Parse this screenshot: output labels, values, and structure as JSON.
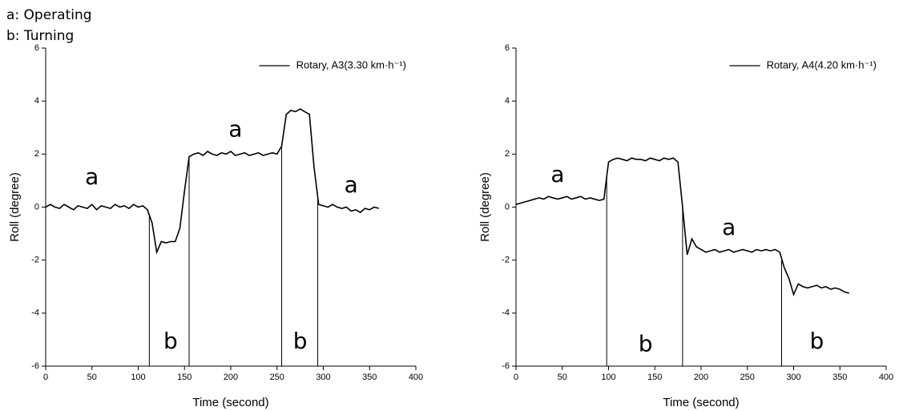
{
  "notes": [
    "a: Operating",
    "b: Turning"
  ],
  "chart_data": [
    {
      "type": "line",
      "xlabel": "Time (second)",
      "ylabel": "Roll (degree)",
      "xlim": [
        0,
        400
      ],
      "xticks": [
        0,
        50,
        100,
        150,
        200,
        250,
        300,
        350,
        400
      ],
      "ylim": [
        -6,
        6
      ],
      "yticks": [
        -6,
        -4,
        -2,
        0,
        2,
        4,
        6
      ],
      "legend": "top right",
      "x": [
        0,
        5,
        10,
        15,
        20,
        25,
        30,
        35,
        40,
        45,
        50,
        55,
        60,
        65,
        70,
        75,
        80,
        85,
        90,
        95,
        100,
        105,
        110,
        115,
        120,
        125,
        130,
        135,
        140,
        145,
        150,
        155,
        160,
        165,
        170,
        175,
        180,
        185,
        190,
        195,
        200,
        205,
        210,
        215,
        220,
        225,
        230,
        235,
        240,
        245,
        250,
        255,
        260,
        265,
        270,
        275,
        280,
        285,
        290,
        295,
        300,
        305,
        310,
        315,
        320,
        325,
        330,
        335,
        340,
        345,
        350,
        355,
        360
      ],
      "series": [
        {
          "name": "Rotary, A3(3.30 km·h⁻¹)",
          "color": "#000000",
          "values": [
            0.0,
            0.1,
            0.0,
            -0.05,
            0.1,
            0.0,
            -0.1,
            0.05,
            0.0,
            -0.05,
            0.1,
            -0.1,
            0.05,
            0.0,
            -0.05,
            0.1,
            0.0,
            0.05,
            -0.05,
            0.1,
            0.0,
            0.05,
            -0.1,
            -0.6,
            -1.7,
            -1.3,
            -1.35,
            -1.3,
            -1.3,
            -0.8,
            0.6,
            1.9,
            2.0,
            2.05,
            1.95,
            2.1,
            2.0,
            1.95,
            2.05,
            2.0,
            2.1,
            1.95,
            2.0,
            2.05,
            1.95,
            2.0,
            2.05,
            1.95,
            2.0,
            2.05,
            2.0,
            2.3,
            3.5,
            3.65,
            3.6,
            3.7,
            3.6,
            3.5,
            1.5,
            0.1,
            0.05,
            0.0,
            0.1,
            0.0,
            -0.05,
            0.0,
            -0.15,
            -0.1,
            -0.2,
            -0.05,
            -0.1,
            0.0,
            -0.05
          ]
        }
      ],
      "vlines": [
        112,
        155,
        255,
        294
      ],
      "annotations": [
        {
          "text": "a",
          "x": 50,
          "y": 1.1
        },
        {
          "text": "a",
          "x": 205,
          "y": 2.9
        },
        {
          "text": "a",
          "x": 330,
          "y": 0.8
        },
        {
          "text": "b",
          "x": 135,
          "y": -5.1
        },
        {
          "text": "b",
          "x": 275,
          "y": -5.1
        }
      ]
    },
    {
      "type": "line",
      "xlabel": "Time (second)",
      "ylabel": "Roll (degree)",
      "xlim": [
        0,
        400
      ],
      "xticks": [
        0,
        50,
        100,
        150,
        200,
        250,
        300,
        350,
        400
      ],
      "ylim": [
        -6,
        6
      ],
      "yticks": [
        -6,
        -4,
        -2,
        0,
        2,
        4,
        6
      ],
      "legend": "top right",
      "x": [
        0,
        5,
        10,
        15,
        20,
        25,
        30,
        35,
        40,
        45,
        50,
        55,
        60,
        65,
        70,
        75,
        80,
        85,
        90,
        95,
        100,
        105,
        110,
        115,
        120,
        125,
        130,
        135,
        140,
        145,
        150,
        155,
        160,
        165,
        170,
        175,
        180,
        185,
        190,
        195,
        200,
        205,
        210,
        215,
        220,
        225,
        230,
        235,
        240,
        245,
        250,
        255,
        260,
        265,
        270,
        275,
        280,
        285,
        290,
        295,
        300,
        305,
        310,
        315,
        320,
        325,
        330,
        335,
        340,
        345,
        350,
        355,
        360
      ],
      "series": [
        {
          "name": "Rotary, A4(4.20 km·h⁻¹)",
          "color": "#000000",
          "values": [
            0.1,
            0.15,
            0.2,
            0.25,
            0.3,
            0.35,
            0.3,
            0.4,
            0.35,
            0.3,
            0.35,
            0.4,
            0.3,
            0.35,
            0.4,
            0.3,
            0.35,
            0.3,
            0.25,
            0.3,
            1.7,
            1.8,
            1.85,
            1.8,
            1.75,
            1.85,
            1.8,
            1.8,
            1.75,
            1.85,
            1.8,
            1.75,
            1.85,
            1.8,
            1.85,
            1.7,
            0.0,
            -1.8,
            -1.2,
            -1.5,
            -1.6,
            -1.7,
            -1.65,
            -1.6,
            -1.7,
            -1.65,
            -1.6,
            -1.7,
            -1.65,
            -1.6,
            -1.65,
            -1.7,
            -1.6,
            -1.65,
            -1.6,
            -1.65,
            -1.6,
            -1.7,
            -2.3,
            -2.7,
            -3.3,
            -2.9,
            -3.0,
            -3.05,
            -3.0,
            -2.95,
            -3.05,
            -3.0,
            -3.1,
            -3.05,
            -3.1,
            -3.2,
            -3.25
          ]
        }
      ],
      "vlines": [
        98,
        180,
        287
      ],
      "annotations": [
        {
          "text": "a",
          "x": 45,
          "y": 1.2
        },
        {
          "text": "a",
          "x": 230,
          "y": -0.8
        },
        {
          "text": "b",
          "x": 140,
          "y": -5.2
        },
        {
          "text": "b",
          "x": 325,
          "y": -5.1
        }
      ]
    }
  ]
}
